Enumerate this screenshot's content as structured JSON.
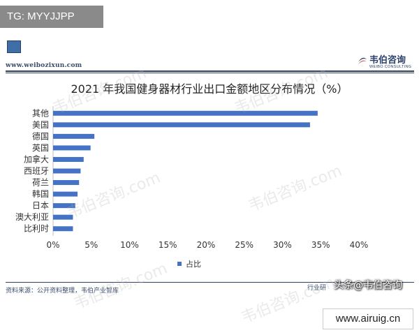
{
  "tag": "TG: MYYJJPP",
  "header": {
    "site_url": "www.weibozixun.com",
    "brand_cn": "韦伯咨询",
    "brand_en": "WEIBO CONSULTING"
  },
  "watermark_text": "韦伯咨询.com",
  "footer": {
    "source": "资料来源：公开资料整理，韦伯产业智库",
    "source_right": "行业研",
    "toutiao": "头条@韦伯咨询",
    "domain": "www.airuig.cn"
  },
  "colors": {
    "bar": "#4572c4",
    "rule": "#2d3e5e"
  },
  "chart_data": {
    "type": "bar",
    "orientation": "horizontal",
    "title": "2021 年我国健身器材行业出口金额地区分布情况（%）",
    "categories": [
      "其他",
      "美国",
      "德国",
      "英国",
      "加拿大",
      "西班牙",
      "荷兰",
      "韩国",
      "日本",
      "澳大利亚",
      "比利时"
    ],
    "series": [
      {
        "name": "占比",
        "values": [
          34.6,
          33.6,
          5.4,
          4.9,
          4.0,
          3.6,
          3.4,
          3.2,
          2.9,
          2.6,
          2.6
        ]
      }
    ],
    "xlim": [
      0,
      40
    ],
    "xticks": [
      "0%",
      "5%",
      "10%",
      "15%",
      "20%",
      "25%",
      "30%",
      "35%",
      "40%"
    ],
    "legend_position": "bottom",
    "grid": false
  }
}
